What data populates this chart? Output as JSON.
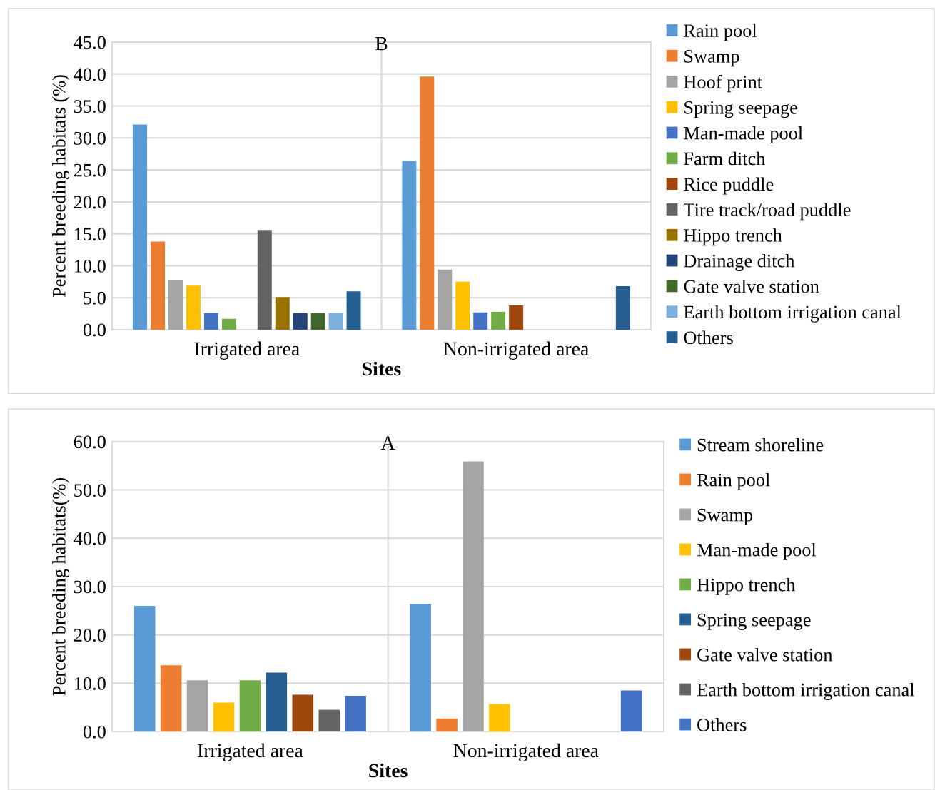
{
  "chart_data": [
    {
      "type": "bar",
      "title": "B",
      "xlabel": "Sites",
      "ylabel": "Percent breeding habitats (%)",
      "categories": [
        "Irrigated area",
        "Non-irrigated area"
      ],
      "ylim": [
        0,
        45
      ],
      "yticks": [
        {
          "value": 0,
          "label": "0.0"
        },
        {
          "value": 5,
          "label": "5.0"
        },
        {
          "value": 10,
          "label": "10.0"
        },
        {
          "value": 15,
          "label": "15.0"
        },
        {
          "value": 20,
          "label": "20.0"
        },
        {
          "value": 25,
          "label": "25.0"
        },
        {
          "value": 30,
          "label": "30.0"
        },
        {
          "value": 35,
          "label": "35.0"
        },
        {
          "value": 40,
          "label": "40.0"
        },
        {
          "value": 45,
          "label": "45.0"
        }
      ],
      "grid": true,
      "legend": "right",
      "series": [
        {
          "name": "Rain pool",
          "color": "#5b9bd5",
          "values": [
            32.1,
            26.4
          ]
        },
        {
          "name": "Swamp",
          "color": "#ed7d31",
          "values": [
            13.8,
            39.6
          ]
        },
        {
          "name": "Hoof print",
          "color": "#a5a5a5",
          "values": [
            7.8,
            9.4
          ]
        },
        {
          "name": "Spring seepage",
          "color": "#ffc000",
          "values": [
            6.9,
            7.5
          ]
        },
        {
          "name": "Man-made pool",
          "color": "#4472c4",
          "values": [
            2.6,
            2.7
          ]
        },
        {
          "name": "Farm ditch",
          "color": "#70ad47",
          "values": [
            1.7,
            2.8
          ]
        },
        {
          "name": "Rice puddle",
          "color": "#9e480e",
          "values": [
            null,
            3.8
          ]
        },
        {
          "name": "Tire track/road puddle",
          "color": "#636363",
          "values": [
            15.6,
            null
          ]
        },
        {
          "name": "Hippo trench",
          "color": "#997300",
          "values": [
            5.1,
            null
          ]
        },
        {
          "name": "Drainage ditch",
          "color": "#264478",
          "values": [
            2.6,
            null
          ]
        },
        {
          "name": "Gate valve station",
          "color": "#43682b",
          "values": [
            2.6,
            null
          ]
        },
        {
          "name": "Earth bottom irrigation canal",
          "color": "#7cafdd",
          "values": [
            2.6,
            null
          ]
        },
        {
          "name": "Others",
          "color": "#255e91",
          "values": [
            6.0,
            6.8
          ]
        }
      ]
    },
    {
      "type": "bar",
      "title": "A",
      "xlabel": "Sites",
      "ylabel": "Percent breeding habitats(%)",
      "categories": [
        "Irrigated area",
        "Non-irrigated area"
      ],
      "ylim": [
        0,
        60
      ],
      "yticks": [
        {
          "value": 0,
          "label": "0.0"
        },
        {
          "value": 10,
          "label": "10.0"
        },
        {
          "value": 20,
          "label": "20.0"
        },
        {
          "value": 30,
          "label": "30.0"
        },
        {
          "value": 40,
          "label": "40.0"
        },
        {
          "value": 50,
          "label": "50.0"
        },
        {
          "value": 60,
          "label": "60.0"
        }
      ],
      "grid": true,
      "legend": "right",
      "series": [
        {
          "name": "Stream shoreline",
          "color": "#5b9bd5",
          "values": [
            26.0,
            26.4
          ]
        },
        {
          "name": "Rain pool",
          "color": "#ed7d31",
          "values": [
            13.7,
            2.7
          ]
        },
        {
          "name": "Swamp",
          "color": "#a5a5a5",
          "values": [
            10.6,
            55.9
          ]
        },
        {
          "name": "Man-made pool",
          "color": "#ffc000",
          "values": [
            6.0,
            5.7
          ]
        },
        {
          "name": "Hippo trench",
          "color": "#70ad47",
          "values": [
            10.6,
            null
          ]
        },
        {
          "name": "Spring seepage",
          "color": "#255e91",
          "values": [
            12.2,
            null
          ]
        },
        {
          "name": "Gate valve station",
          "color": "#9e480e",
          "values": [
            7.6,
            null
          ]
        },
        {
          "name": "Earth bottom irrigation canal",
          "color": "#636363",
          "values": [
            4.5,
            null
          ]
        },
        {
          "name": "Others",
          "color": "#4472c4",
          "values": [
            7.4,
            8.5
          ]
        }
      ]
    }
  ]
}
